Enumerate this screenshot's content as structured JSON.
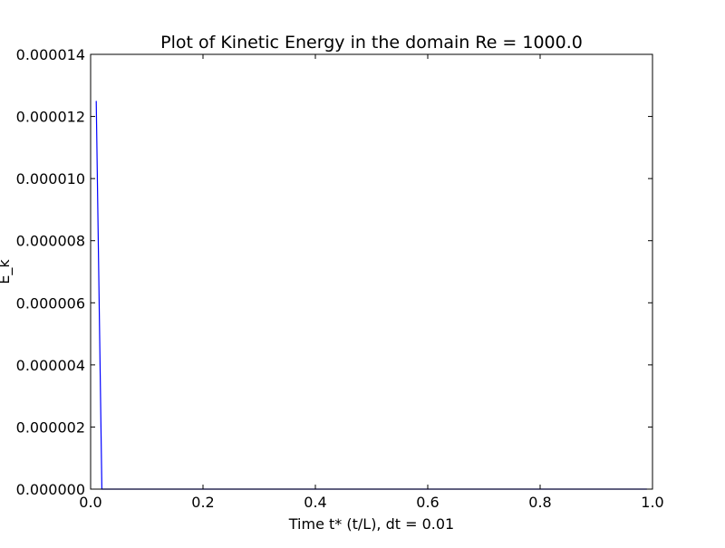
{
  "chart_data": {
    "type": "line",
    "title": "Plot of Kinetic Energy in the domain Re = 1000.0",
    "xlabel": "Time t* (t/L),  dt = 0.01",
    "ylabel": "E_k",
    "xlim": [
      0.0,
      1.0
    ],
    "ylim": [
      0.0,
      1.4e-05
    ],
    "xticks": [
      0.0,
      0.2,
      0.4,
      0.6,
      0.8,
      1.0
    ],
    "xtick_labels": [
      "0.0",
      "0.2",
      "0.4",
      "0.6",
      "0.8",
      "1.0"
    ],
    "yticks": [
      0.0,
      2e-06,
      4e-06,
      6e-06,
      8e-06,
      1e-05,
      1.2e-05,
      1.4e-05
    ],
    "ytick_labels": [
      "0.000000",
      "0.000002",
      "0.000004",
      "0.000006",
      "0.000008",
      "0.000010",
      "0.000012",
      "0.000014"
    ],
    "grid": false,
    "legend": null,
    "series": [
      {
        "color": "#0000ff",
        "x": [
          0.01,
          0.02,
          0.03,
          0.04,
          0.05,
          0.1,
          0.2,
          0.3,
          0.4,
          0.5,
          0.6,
          0.7,
          0.8,
          0.9,
          0.99
        ],
        "y": [
          1.25e-05,
          0.0,
          0.0,
          0.0,
          0.0,
          0.0,
          0.0,
          0.0,
          0.0,
          0.0,
          0.0,
          0.0,
          0.0,
          0.0,
          0.0
        ]
      }
    ]
  }
}
